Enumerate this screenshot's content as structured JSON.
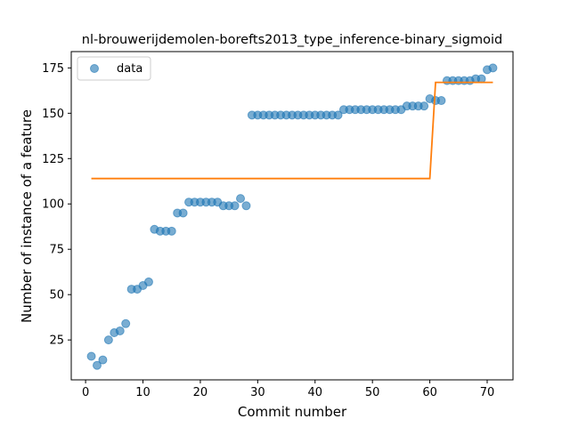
{
  "chart_data": {
    "type": "scatter",
    "title": "nl-brouwerijdemolen-borefts2013_type_inference-binary_sigmoid",
    "xlabel": "Commit number",
    "ylabel": "Number of instance of a feature",
    "xlim": [
      -2.5,
      74.5
    ],
    "ylim": [
      3,
      184
    ],
    "xticks": [
      0,
      10,
      20,
      30,
      40,
      50,
      60,
      70
    ],
    "yticks": [
      25,
      50,
      75,
      100,
      125,
      150,
      175
    ],
    "grid": false,
    "legend_position": "top-left",
    "series": [
      {
        "name": "data",
        "kind": "scatter",
        "color": "#1f77b4",
        "x": [
          1,
          2,
          3,
          4,
          5,
          6,
          7,
          8,
          9,
          10,
          11,
          12,
          13,
          14,
          15,
          16,
          17,
          18,
          19,
          20,
          21,
          22,
          23,
          24,
          25,
          26,
          27,
          28,
          29,
          30,
          31,
          32,
          33,
          34,
          35,
          36,
          37,
          38,
          39,
          40,
          41,
          42,
          43,
          44,
          45,
          46,
          47,
          48,
          49,
          50,
          51,
          52,
          53,
          54,
          55,
          56,
          57,
          58,
          59,
          60,
          61,
          62,
          63,
          64,
          65,
          66,
          67,
          68,
          69,
          70,
          71
        ],
        "y": [
          16,
          11,
          14,
          25,
          29,
          30,
          34,
          53,
          53,
          55,
          57,
          86,
          85,
          85,
          85,
          95,
          95,
          101,
          101,
          101,
          101,
          101,
          101,
          99,
          99,
          99,
          103,
          99,
          149,
          149,
          149,
          149,
          149,
          149,
          149,
          149,
          149,
          149,
          149,
          149,
          149,
          149,
          149,
          149,
          152,
          152,
          152,
          152,
          152,
          152,
          152,
          152,
          152,
          152,
          152,
          154,
          154,
          154,
          154,
          158,
          157,
          157,
          168,
          168,
          168,
          168,
          168,
          169,
          169,
          174,
          175
        ]
      },
      {
        "kind": "line",
        "color": "#ff7f0e",
        "x": [
          1,
          60,
          61,
          71
        ],
        "y": [
          114,
          114,
          167,
          167
        ]
      }
    ]
  }
}
